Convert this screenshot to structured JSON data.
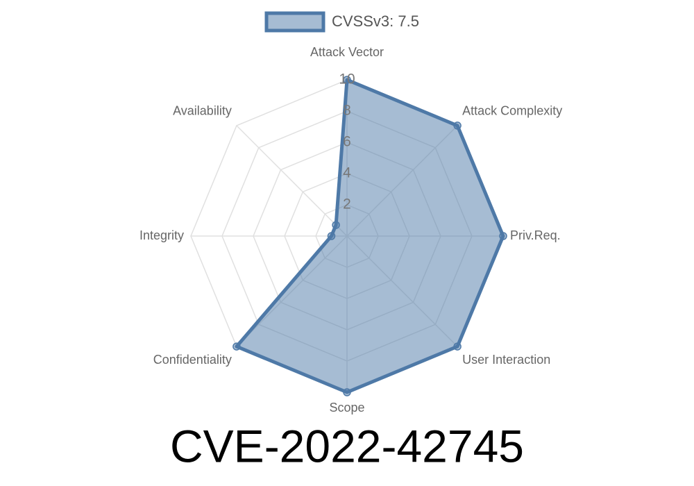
{
  "chart_data": {
    "type": "radar",
    "title": "CVE-2022-42745",
    "categories": [
      "Attack Vector",
      "Attack Complexity",
      "Priv.Req.",
      "User Interaction",
      "Scope",
      "Confidentiality",
      "Integrity",
      "Availability"
    ],
    "series": [
      {
        "name": "CVSSv3: 7.5",
        "color": "#4e79a7",
        "values": [
          10,
          10,
          10,
          10,
          10,
          10,
          1,
          1
        ]
      }
    ],
    "rlim": [
      0,
      10
    ],
    "rticks": [
      2,
      4,
      6,
      8,
      10
    ],
    "grid": true,
    "legend": "top"
  }
}
